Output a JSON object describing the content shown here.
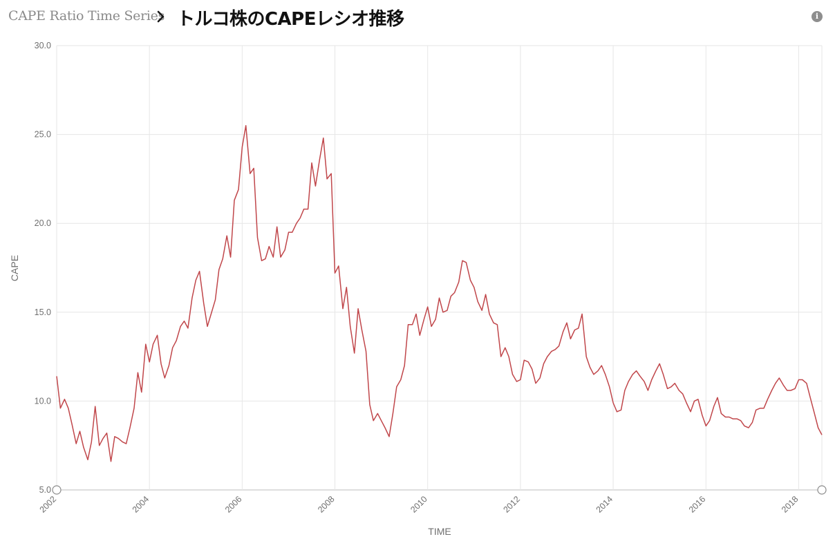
{
  "header": {
    "breadcrumb": "CAPE Ratio Time Series",
    "title": "トルコ株のCAPEレシオ推移",
    "info_icon": "info-icon"
  },
  "chart_data": {
    "type": "line",
    "xlabel": "TIME",
    "ylabel": "CAPE",
    "xlim": [
      2002,
      2018.5
    ],
    "ylim": [
      5,
      30
    ],
    "y_ticks": [
      "5.0",
      "10.0",
      "15.0",
      "20.0",
      "25.0",
      "30.0"
    ],
    "x_ticks": [
      "2002",
      "2004",
      "2006",
      "2008",
      "2010",
      "2012",
      "2014",
      "2016",
      "2018"
    ],
    "grid": true,
    "line_color": "#c0464a",
    "series": [
      {
        "x": [
          2002.0,
          2002.08,
          2002.17,
          2002.25,
          2002.33,
          2002.42,
          2002.5,
          2002.58,
          2002.67,
          2002.75,
          2002.83,
          2002.92,
          2003.0,
          2003.08,
          2003.17,
          2003.25,
          2003.33,
          2003.42,
          2003.5,
          2003.58,
          2003.67,
          2003.75,
          2003.83,
          2003.92,
          2004.0,
          2004.08,
          2004.17,
          2004.25,
          2004.33,
          2004.42,
          2004.5,
          2004.58,
          2004.67,
          2004.75,
          2004.83,
          2004.92,
          2005.0,
          2005.08,
          2005.17,
          2005.25,
          2005.33,
          2005.42,
          2005.5,
          2005.58,
          2005.67,
          2005.75,
          2005.83,
          2005.92,
          2006.0,
          2006.08,
          2006.17,
          2006.25,
          2006.33,
          2006.42,
          2006.5,
          2006.58,
          2006.67,
          2006.75,
          2006.83,
          2006.92,
          2007.0,
          2007.08,
          2007.17,
          2007.25,
          2007.33,
          2007.42,
          2007.5,
          2007.58,
          2007.67,
          2007.75,
          2007.83,
          2007.92,
          2008.0,
          2008.08,
          2008.17,
          2008.25,
          2008.33,
          2008.42,
          2008.5,
          2008.58,
          2008.67,
          2008.75,
          2008.83,
          2008.92,
          2009.0,
          2009.08,
          2009.17,
          2009.25,
          2009.33,
          2009.42,
          2009.5,
          2009.58,
          2009.67,
          2009.75,
          2009.83,
          2009.92,
          2010.0,
          2010.08,
          2010.17,
          2010.25,
          2010.33,
          2010.42,
          2010.5,
          2010.58,
          2010.67,
          2010.75,
          2010.83,
          2010.92,
          2011.0,
          2011.08,
          2011.17,
          2011.25,
          2011.33,
          2011.42,
          2011.5,
          2011.58,
          2011.67,
          2011.75,
          2011.83,
          2011.92,
          2012.0,
          2012.08,
          2012.17,
          2012.25,
          2012.33,
          2012.42,
          2012.5,
          2012.58,
          2012.67,
          2012.75,
          2012.83,
          2012.92,
          2013.0,
          2013.08,
          2013.17,
          2013.25,
          2013.33,
          2013.42,
          2013.5,
          2013.58,
          2013.67,
          2013.75,
          2013.83,
          2013.92,
          2014.0,
          2014.08,
          2014.17,
          2014.25,
          2014.33,
          2014.42,
          2014.5,
          2014.58,
          2014.67,
          2014.75,
          2014.83,
          2014.92,
          2015.0,
          2015.08,
          2015.17,
          2015.25,
          2015.33,
          2015.42,
          2015.5,
          2015.58,
          2015.67,
          2015.75,
          2015.83,
          2015.92,
          2016.0,
          2016.08,
          2016.17,
          2016.25,
          2016.33,
          2016.42,
          2016.5,
          2016.58,
          2016.67,
          2016.75,
          2016.83,
          2016.92,
          2017.0,
          2017.08,
          2017.17,
          2017.25,
          2017.33,
          2017.42,
          2017.5,
          2017.58,
          2017.67,
          2017.75,
          2017.83,
          2017.92,
          2018.0,
          2018.08,
          2018.17,
          2018.25,
          2018.33,
          2018.42,
          2018.5
        ],
        "y": [
          11.4,
          9.6,
          10.1,
          9.6,
          8.7,
          7.6,
          8.3,
          7.4,
          6.7,
          7.7,
          9.7,
          7.5,
          7.9,
          8.2,
          6.6,
          8.0,
          7.9,
          7.7,
          7.6,
          8.5,
          9.6,
          11.6,
          10.5,
          13.2,
          12.2,
          13.2,
          13.7,
          12.1,
          11.3,
          12.0,
          13.0,
          13.4,
          14.2,
          14.5,
          14.1,
          15.8,
          16.8,
          17.3,
          15.5,
          14.2,
          14.9,
          15.7,
          17.4,
          18.0,
          19.3,
          18.1,
          21.3,
          21.9,
          24.3,
          25.5,
          22.8,
          23.1,
          19.2,
          17.9,
          18.0,
          18.7,
          18.1,
          19.8,
          18.1,
          18.5,
          19.5,
          19.5,
          20.0,
          20.3,
          20.8,
          20.8,
          23.4,
          22.1,
          23.6,
          24.8,
          22.5,
          22.8,
          17.2,
          17.6,
          15.2,
          16.4,
          14.2,
          12.7,
          15.2,
          14.0,
          12.8,
          9.8,
          8.9,
          9.3,
          8.9,
          8.5,
          8.0,
          9.3,
          10.8,
          11.2,
          12.0,
          14.3,
          14.3,
          14.9,
          13.7,
          14.6,
          15.3,
          14.2,
          14.6,
          15.8,
          15.0,
          15.1,
          15.9,
          16.1,
          16.7,
          17.9,
          17.8,
          16.8,
          16.4,
          15.6,
          15.1,
          16.0,
          14.9,
          14.4,
          14.3,
          12.5,
          13.0,
          12.5,
          11.5,
          11.1,
          11.2,
          12.3,
          12.2,
          11.8,
          11.0,
          11.3,
          12.1,
          12.5,
          12.8,
          12.9,
          13.1,
          13.9,
          14.4,
          13.5,
          14.0,
          14.1,
          14.9,
          12.5,
          11.9,
          11.5,
          11.7,
          12.0,
          11.5,
          10.8,
          9.9,
          9.4,
          9.5,
          10.6,
          11.1,
          11.5,
          11.7,
          11.4,
          11.1,
          10.6,
          11.2,
          11.7,
          12.1,
          11.5,
          10.7,
          10.8,
          11.0,
          10.6,
          10.4,
          9.9,
          9.4,
          10.0,
          10.1,
          9.2,
          8.6,
          8.9,
          9.7,
          10.2,
          9.3,
          9.1,
          9.1,
          9.0,
          9.0,
          8.9,
          8.6,
          8.5,
          8.8,
          9.5,
          9.6,
          9.6,
          10.1,
          10.6,
          11.0,
          11.3,
          10.9,
          10.6,
          10.6,
          10.7,
          11.2,
          11.2,
          11.0,
          10.2,
          9.4,
          8.5,
          8.1
        ]
      }
    ]
  }
}
